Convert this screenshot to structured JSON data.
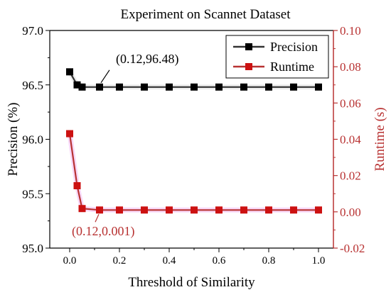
{
  "chart_data": {
    "type": "line",
    "title": "Experiment on Scannet Dataset",
    "xlabel": "Threshold of Similarity",
    "ylabel_left": "Precision (%)",
    "ylabel_right": "Runtime (s)",
    "xlim": [
      -0.08,
      1.06
    ],
    "ylim_left": [
      95.0,
      97.0
    ],
    "ylim_right": [
      -0.02,
      0.1
    ],
    "xticks": [
      "0.0",
      "0.2",
      "0.4",
      "0.6",
      "0.8",
      "1.0"
    ],
    "yticks_left": [
      "95.0",
      "95.5",
      "96.0",
      "96.5",
      "97.0"
    ],
    "yticks_right": [
      "-0.02",
      "0.00",
      "0.02",
      "0.04",
      "0.06",
      "0.08",
      "0.10"
    ],
    "legend_position": "top-right",
    "grid": false,
    "series": [
      {
        "name": "Precision",
        "axis": "left",
        "color": "#000000",
        "line_color": "#333333",
        "marker": "square",
        "points": [
          {
            "x": 0.0,
            "y": 96.62
          },
          {
            "x": 0.03,
            "y": 96.5
          },
          {
            "x": 0.05,
            "y": 96.48
          },
          {
            "x": 0.12,
            "y": 96.48
          },
          {
            "x": 0.2,
            "y": 96.48
          },
          {
            "x": 0.3,
            "y": 96.48
          },
          {
            "x": 0.4,
            "y": 96.48
          },
          {
            "x": 0.5,
            "y": 96.48
          },
          {
            "x": 0.6,
            "y": 96.48
          },
          {
            "x": 0.7,
            "y": 96.48
          },
          {
            "x": 0.8,
            "y": 96.48
          },
          {
            "x": 0.9,
            "y": 96.48
          },
          {
            "x": 1.0,
            "y": 96.48
          }
        ]
      },
      {
        "name": "Runtime",
        "axis": "right",
        "color": "#cc1111",
        "line_color": "#b83232",
        "marker": "square",
        "points": [
          {
            "x": 0.0,
            "y": 0.0431
          },
          {
            "x": 0.03,
            "y": 0.0144
          },
          {
            "x": 0.05,
            "y": 0.0018
          },
          {
            "x": 0.12,
            "y": 0.001
          },
          {
            "x": 0.2,
            "y": 0.001
          },
          {
            "x": 0.3,
            "y": 0.001
          },
          {
            "x": 0.4,
            "y": 0.001
          },
          {
            "x": 0.5,
            "y": 0.001
          },
          {
            "x": 0.6,
            "y": 0.001
          },
          {
            "x": 0.7,
            "y": 0.001
          },
          {
            "x": 0.8,
            "y": 0.001
          },
          {
            "x": 0.9,
            "y": 0.001
          },
          {
            "x": 1.0,
            "y": 0.001
          }
        ]
      }
    ],
    "annotations": [
      {
        "text": "(0.12,96.48)",
        "series": "Precision",
        "x": 0.12,
        "y": 96.48,
        "color": "#000000"
      },
      {
        "text": "(0.12,0.001)",
        "series": "Runtime",
        "x": 0.12,
        "y": 0.001,
        "color": "#b83232"
      }
    ]
  }
}
